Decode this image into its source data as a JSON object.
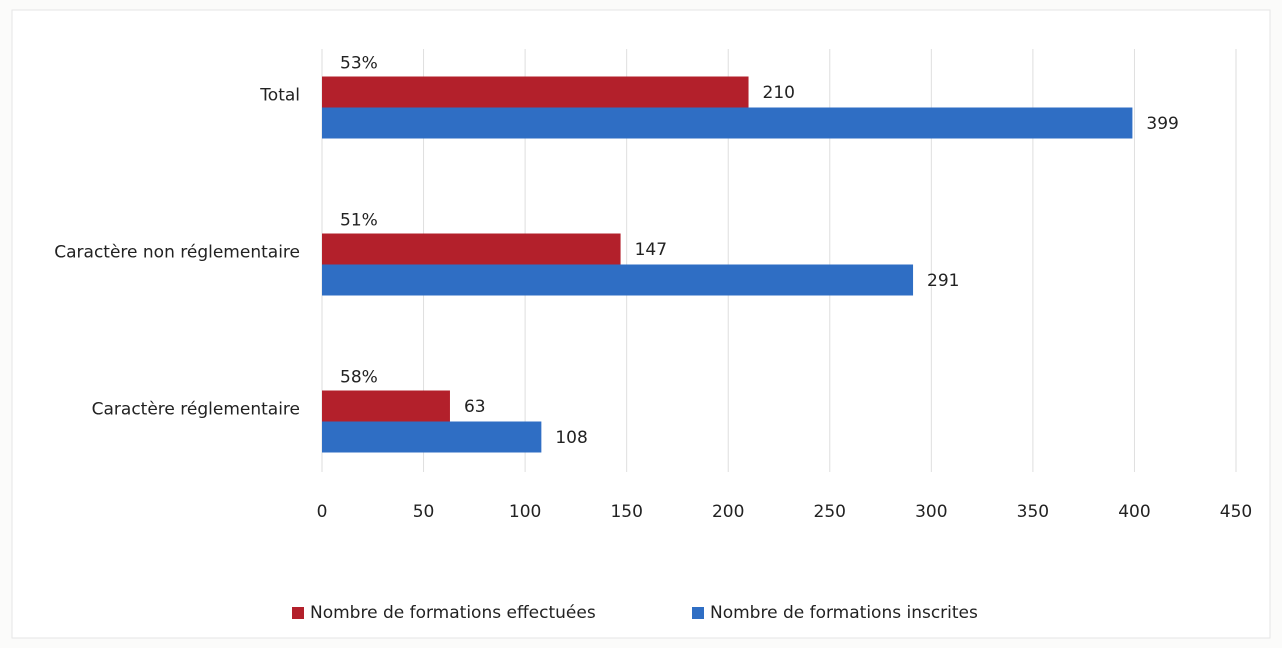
{
  "chart_data": {
    "type": "barh",
    "categories": [
      "Total",
      "Caractère non réglementaire",
      "Caractère réglementaire"
    ],
    "series": [
      {
        "name": "Nombre de formations effectuées",
        "color": "#b3202b",
        "values": [
          210,
          147,
          63
        ]
      },
      {
        "name": "Nombre de formations inscrites",
        "color": "#2f6ec4",
        "values": [
          399,
          291,
          108
        ]
      }
    ],
    "annotations": [
      "53%",
      "51%",
      "58%"
    ],
    "xlim": [
      0,
      450
    ],
    "xticks": [
      0,
      50,
      100,
      150,
      200,
      250,
      300,
      350,
      400,
      450
    ],
    "grid": true,
    "legend": "bottom"
  }
}
